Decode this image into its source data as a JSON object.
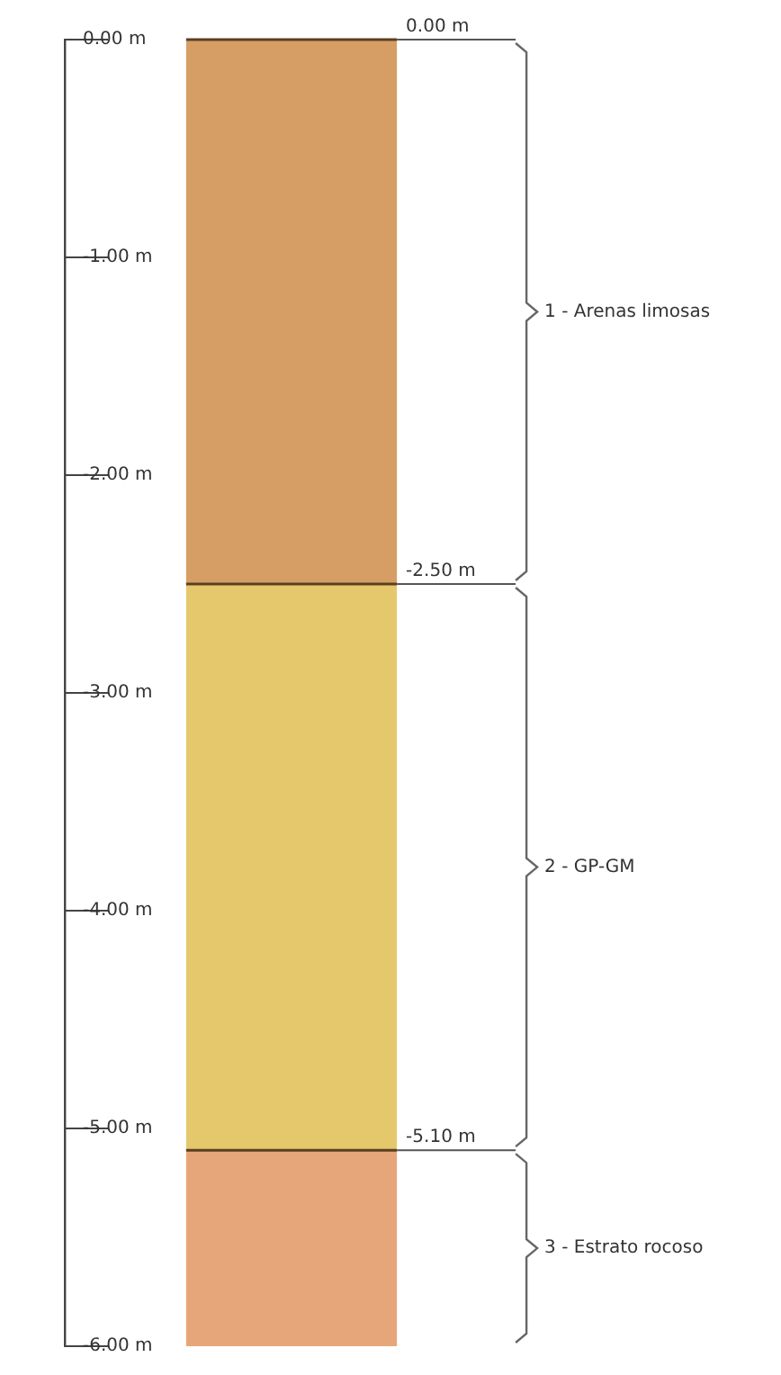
{
  "chart_data": {
    "type": "bar",
    "stacked": true,
    "categories": [
      null
    ],
    "series": [
      {
        "name": "1 - Arenas limosas",
        "color": "#d69e65",
        "values": [
          -2.5
        ]
      },
      {
        "name": "2 - GP-GM",
        "color": "#e6c86c",
        "values": [
          -2.6
        ]
      },
      {
        "name": "3 - Estrato rocoso",
        "color": "#e6a67a",
        "values": [
          -0.9
        ]
      }
    ],
    "ylim": [
      -6,
      0
    ],
    "yticks": [
      {
        "value": 0,
        "label": "0.00 m"
      },
      {
        "value": -1,
        "label": "-1.00 m"
      },
      {
        "value": -2,
        "label": "-2.00 m"
      },
      {
        "value": -3,
        "label": "-3.00 m"
      },
      {
        "value": -4,
        "label": "-4.00 m"
      },
      {
        "value": -5,
        "label": "-5.00 m"
      },
      {
        "value": -6,
        "label": "-6.00 m"
      }
    ],
    "annotations": [
      "0.00 m",
      "-2.50 m",
      "-5.10 m"
    ],
    "legend": false,
    "grid": false
  }
}
